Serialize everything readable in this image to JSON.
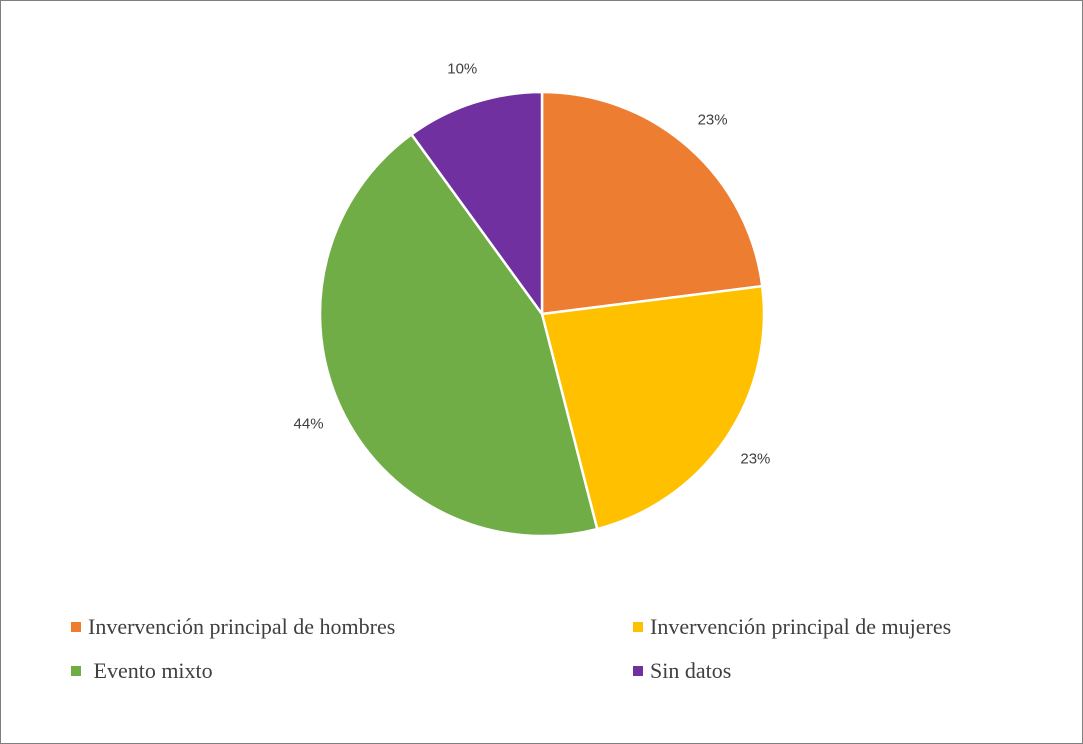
{
  "chart_data": {
    "type": "pie",
    "title": "",
    "categories": [
      "Invervención principal de hombres",
      "Invervención principal de mujeres",
      " Evento mixto",
      "Sin datos"
    ],
    "values": [
      23,
      23,
      44,
      10
    ],
    "labels": [
      "23%",
      "23%",
      "44%",
      "10%"
    ],
    "colors": [
      "#ed7d31",
      "#ffc000",
      "#70ad47",
      "#7030a0"
    ],
    "legend_position": "bottom"
  }
}
